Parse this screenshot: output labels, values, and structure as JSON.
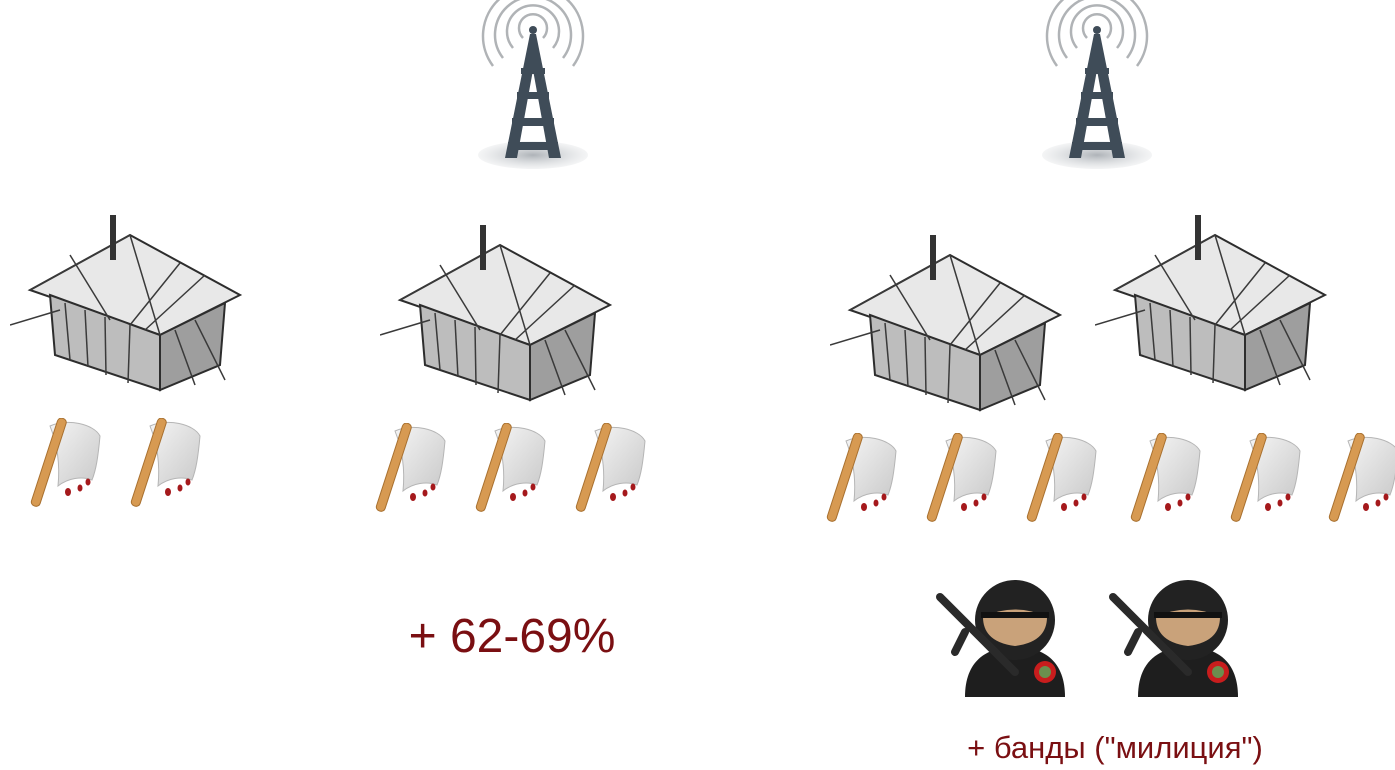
{
  "labels": {
    "effect": "+ 62-69%",
    "gangs": "+ банды (\"милиция\")"
  }
}
